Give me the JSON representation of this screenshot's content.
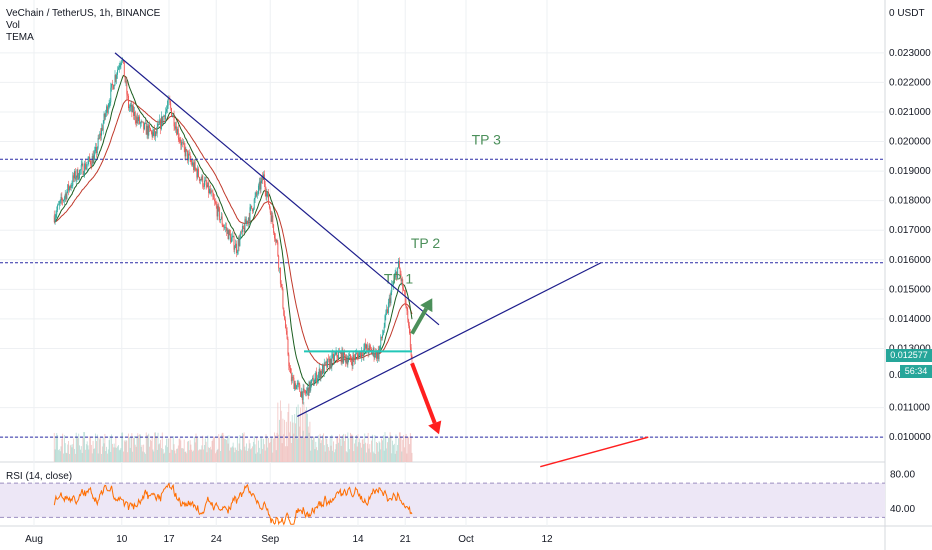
{
  "legend": {
    "title": "VeChain / TetherUS, 1h, BINANCE",
    "vol": "Vol",
    "tema": "TEMA"
  },
  "rsi": {
    "label": "RSI (14, close)",
    "levels": [
      80,
      40
    ],
    "band": [
      30,
      70
    ]
  },
  "colors": {
    "up": "#26a69a",
    "down": "#ef5350",
    "trend": "#1e1e8c",
    "level": "#2a2aa5",
    "tp": "#4b8f5a",
    "rsi_line": "#ff6d00",
    "rsi_band": "#ede7f6",
    "red_arrow": "#ff1f1f",
    "green_arrow": "#4b8f5a",
    "support": "#22c7b8",
    "tag": "#26a69a",
    "ma_red": "#c0392b",
    "ma_green": "#1b5e20",
    "grid": "#eef0f3"
  },
  "chart_data": {
    "type": "candlestick",
    "title": "VeChain / TetherUS, 1h, BINANCE",
    "y_axis": {
      "unit": "USDT",
      "ticks": [
        0.023,
        0.022,
        0.021,
        0.02,
        0.019,
        0.018,
        0.017,
        0.016,
        0.015,
        0.014,
        0.013,
        0.011,
        0.01
      ],
      "tick_labels": [
        "0.023000",
        "0.022000",
        "0.021000",
        "0.020000",
        "0.019000",
        "0.018000",
        "0.017000",
        "0.016000",
        "0.015000",
        "0.014000",
        "0.013000",
        "0.011000",
        "0.010000"
      ],
      "range": [
        0.0091,
        0.0245
      ]
    },
    "x_axis": {
      "ticks": [
        "Aug",
        "10",
        "17",
        "24",
        "Sep",
        "14",
        "21",
        "Oct",
        "12"
      ],
      "tick_days": [
        -3,
        10,
        17,
        24,
        32,
        45,
        52,
        61,
        73
      ]
    },
    "last_price": "0.012577",
    "countdown": "56:34",
    "price_path": [
      [
        0,
        0.0175
      ],
      [
        3,
        0.0188
      ],
      [
        6,
        0.0195
      ],
      [
        9,
        0.0222
      ],
      [
        10,
        0.0229
      ],
      [
        11,
        0.0212
      ],
      [
        13,
        0.0205
      ],
      [
        15,
        0.0202
      ],
      [
        17,
        0.0213
      ],
      [
        19,
        0.0198
      ],
      [
        21,
        0.019
      ],
      [
        23,
        0.0183
      ],
      [
        25,
        0.0172
      ],
      [
        27,
        0.0164
      ],
      [
        30,
        0.0182
      ],
      [
        31,
        0.0188
      ],
      [
        33,
        0.0165
      ],
      [
        35,
        0.012
      ],
      [
        37,
        0.0114
      ],
      [
        39,
        0.0121
      ],
      [
        42,
        0.0128
      ],
      [
        44,
        0.0126
      ],
      [
        46,
        0.013
      ],
      [
        48,
        0.0128
      ],
      [
        50,
        0.015
      ],
      [
        51,
        0.0158
      ],
      [
        52,
        0.0146
      ],
      [
        53,
        0.0126
      ]
    ],
    "annotations": [
      {
        "type": "label",
        "text": "TP 3",
        "day": 64,
        "price": 0.0199
      },
      {
        "type": "label",
        "text": "TP 2",
        "day": 55,
        "price": 0.0164
      },
      {
        "type": "label",
        "text": "TP 1",
        "day": 51,
        "price": 0.0152
      },
      {
        "type": "hline",
        "price": 0.0194
      },
      {
        "type": "hline",
        "price": 0.0159
      },
      {
        "type": "hline",
        "price": 0.01
      },
      {
        "type": "hline",
        "price": 0.0129,
        "from_day": 37,
        "to_day": 53
      },
      {
        "type": "trendline",
        "from": [
          9,
          0.023
        ],
        "to": [
          57,
          0.0138
        ]
      },
      {
        "type": "trendline",
        "from": [
          36,
          0.0107
        ],
        "to": [
          81,
          0.0159
        ]
      },
      {
        "type": "trendline",
        "from": [
          72,
          0.009
        ],
        "to": [
          88,
          0.01
        ]
      },
      {
        "type": "arrow",
        "direction": "up",
        "from": [
          53,
          0.0135
        ],
        "to": [
          56,
          0.0147
        ]
      },
      {
        "type": "arrow",
        "direction": "down",
        "from": [
          53,
          0.0125
        ],
        "to": [
          57,
          0.0101
        ]
      }
    ]
  }
}
